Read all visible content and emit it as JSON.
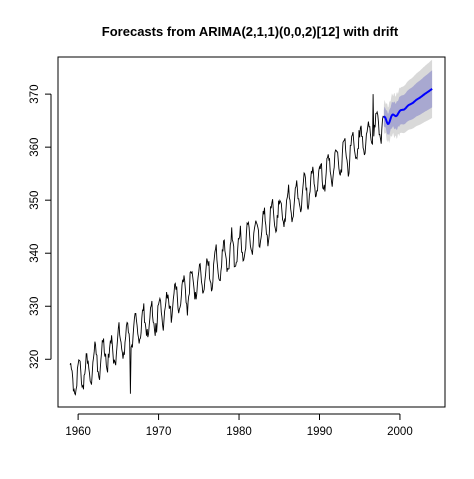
{
  "chart_data": {
    "type": "line",
    "title": "Forecasts from ARIMA(2,1,1)(0,0,2)[12] with drift",
    "xlabel": "",
    "ylabel": "",
    "xlim": [
      1957.5,
      2005.6
    ],
    "ylim": [
      311,
      377
    ],
    "x_ticks": [
      1960,
      1970,
      1980,
      1990,
      2000
    ],
    "x_tick_labels": [
      "1960",
      "1970",
      "1980",
      "1990",
      "2000"
    ],
    "y_ticks": [
      320,
      330,
      340,
      350,
      360,
      370
    ],
    "y_tick_labels": [
      "320",
      "330",
      "340",
      "350",
      "360",
      "370"
    ],
    "grid": false,
    "legend": "none",
    "history": {
      "start": 1959.0,
      "end": 1997.917,
      "frequency": 12,
      "trend_start": 315.5,
      "trend_end": 364.5,
      "seasonal_amplitude": 3.0,
      "noise_sd": 1.0,
      "min_dip": [
        1966.5,
        313.5
      ],
      "max_spike": [
        1996.7,
        370.0
      ]
    },
    "forecast": {
      "start": 1998.0,
      "end": 2004.0,
      "point_start": 364.5,
      "point_end": 371.0,
      "seasonal_amplitude": 1.2,
      "interval_80_half_width_start": 1.5,
      "interval_80_half_width_end": 3.5,
      "interval_95_half_width_start": 2.5,
      "interval_95_half_width_end": 5.5
    },
    "colors": {
      "history": "#000000",
      "forecast": "#0000ff",
      "band_95": "#d9d9d9",
      "band_80": "#a8a8d0"
    }
  }
}
